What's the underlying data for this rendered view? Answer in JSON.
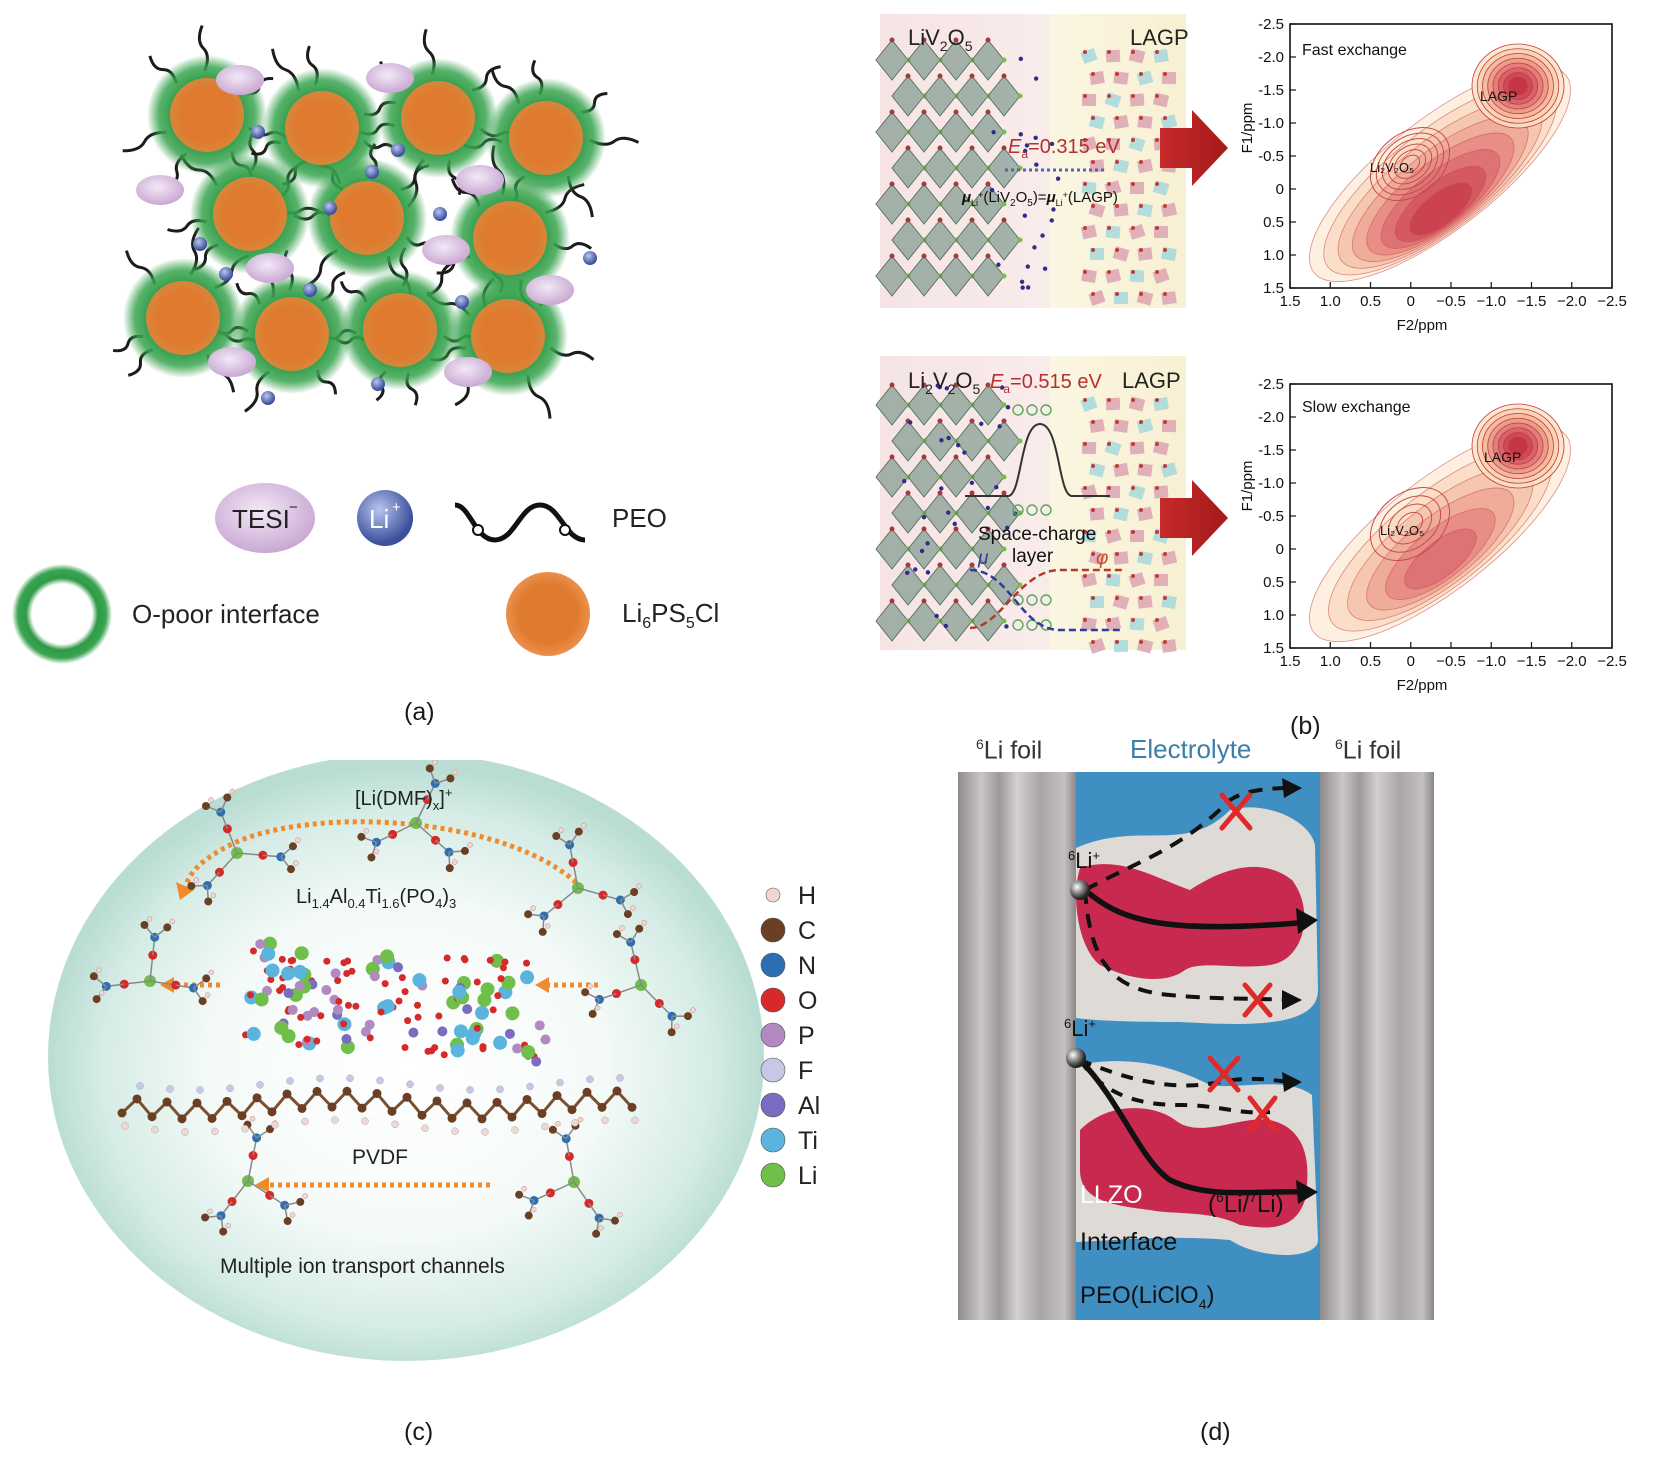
{
  "panel_a": {
    "caption": "(a)",
    "legend": {
      "anion": "TESI",
      "anion_charge": "−",
      "cation": "Li",
      "cation_charge": "+",
      "polymer": "PEO",
      "interface": "O-poor interface",
      "filler_li": "Li",
      "filler_li_sub": "6",
      "filler_ps": "PS",
      "filler_ps_sub": "5",
      "filler_cl": "Cl"
    },
    "colors": {
      "particle": "#e07a2e",
      "shell": "#2e9a45",
      "anion": "#d9c3e0",
      "cation": "#4a5ea8"
    }
  },
  "panel_b": {
    "caption": "(b)",
    "top": {
      "left_label": "LiV",
      "left_sub1": "2",
      "left_o": "O",
      "left_sub2": "5",
      "right_label": "LAGP",
      "ea_e": "E",
      "ea_sub": "a",
      "ea_value": "=0.315 eV",
      "mu_text": "μ",
      "mu_sub": "Li",
      "mu_sup": "+",
      "mu_left": "(LiV",
      "mu_left_sub1": "2",
      "mu_left_o": "O",
      "mu_left_sub2": "5",
      "mu_mid": ")=",
      "mu_right": "(LAGP)",
      "nmr_title": "Fast exchange",
      "peak_lagp": "LAGP",
      "peak_li2v2o5": "Li₂V₂O₅"
    },
    "bottom": {
      "left_label": "Li",
      "left_sub0": "2",
      "left_v": "V",
      "left_sub1": "2",
      "left_o": "O",
      "left_sub2": "5",
      "right_label": "LAGP",
      "ea_e": "E",
      "ea_sub": "a",
      "ea_value": "=0.515 eV",
      "space_charge": "Space-charge",
      "layer": "layer",
      "mu_symbol": "μ",
      "phi_symbol": "φ",
      "nmr_title": "Slow exchange",
      "peak_lagp": "LAGP",
      "peak_li2v2o5": "Li₂V₂O₅"
    },
    "axes": {
      "y_label": "F1/ppm",
      "x_label": "F2/ppm",
      "y_ticks": [
        "-2.5",
        "-2.0",
        "-1.5",
        "-1.0",
        "-0.5",
        "0",
        "0.5",
        "1.0",
        "1.5"
      ],
      "x_ticks": [
        "1.5",
        "1.0",
        "0.5",
        "0",
        "−0.5",
        "−1.0",
        "−1.5",
        "−2.0",
        "−2.5"
      ]
    }
  },
  "panel_c": {
    "caption": "(c)",
    "complex_pre": "[Li(DMF)",
    "complex_sub": "x",
    "complex_post": "]",
    "complex_sup": "+",
    "llatp": {
      "a": "Li",
      "a_sub": "1.4",
      "b": "Al",
      "b_sub": "0.4",
      "c": "Ti",
      "c_sub": "1.6",
      "d": "(PO",
      "d_sub": "4",
      "e": ")",
      "e_sub": "3"
    },
    "pvdf": "PVDF",
    "footer": "Multiple ion transport channels",
    "legend": [
      {
        "label": "H",
        "color": "#f0d8d0"
      },
      {
        "label": "C",
        "color": "#6b3f24"
      },
      {
        "label": "N",
        "color": "#2e6fb3"
      },
      {
        "label": "O",
        "color": "#d62a2a"
      },
      {
        "label": "P",
        "color": "#b08ac0"
      },
      {
        "label": "F",
        "color": "#c8c8e6"
      },
      {
        "label": "Al",
        "color": "#7a6cc0"
      },
      {
        "label": "Ti",
        "color": "#5bb4de"
      },
      {
        "label": "Li",
        "color": "#6fbf4a"
      }
    ]
  },
  "panel_d": {
    "caption": "(d)",
    "left_foil_sup": "6",
    "left_foil": "Li foil",
    "electrolyte": "Electrolyte",
    "right_foil_sup": "6",
    "right_foil": "Li foil",
    "ion1_sup": "6",
    "ion1": "Li",
    "ion1_charge": "+",
    "ion2_sup": "6",
    "ion2": "Li",
    "ion2_charge": "+",
    "llzo": "LLZO",
    "isotope_open": "(",
    "isotope_sup1": "6",
    "isotope_mid": "Li/",
    "isotope_sup2": "7",
    "isotope_end": "Li)",
    "interface": "Interface",
    "peo": "PEO(LiClO",
    "peo_sub": "4",
    "peo_end": ")",
    "colors": {
      "electrolyte": "#3f8fc2",
      "llzo": "#c8294f",
      "interface": "#dedad6"
    }
  }
}
